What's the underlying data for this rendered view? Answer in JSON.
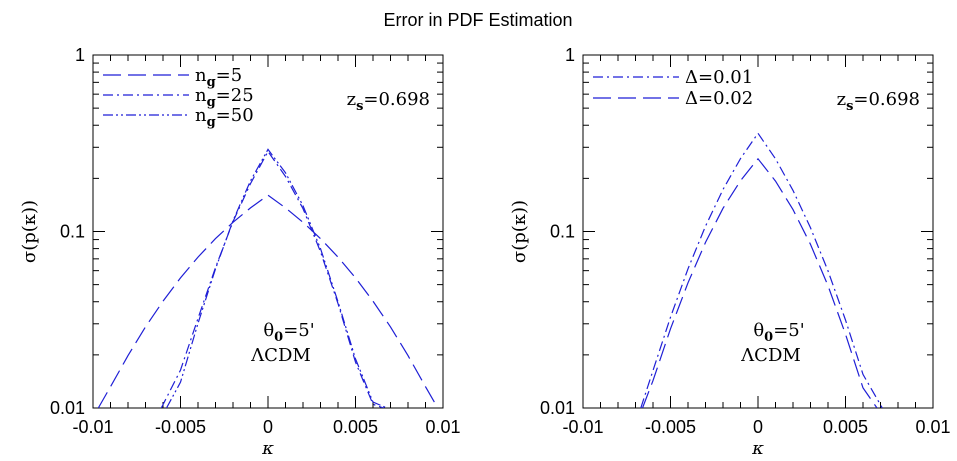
{
  "figure_title": "Error in PDF Estimation",
  "line_color": "#1f1fd6",
  "chart_data": [
    {
      "type": "line",
      "title": "",
      "xlabel": "κ",
      "ylabel": "σ(p(κ))",
      "xlim": [
        -0.01,
        0.01
      ],
      "ylim": [
        0.01,
        1
      ],
      "yscale": "log",
      "xticks": [
        "-0.01",
        "-0.005",
        "0",
        "0.005",
        "0.01"
      ],
      "yticks": [
        "0.01",
        "0.1",
        "1"
      ],
      "legend_position": "top-left",
      "annotation_top": {
        "base": "z",
        "sub": "s",
        "rest": "=0.698"
      },
      "annotation_theta": {
        "base": "θ",
        "sub": "0",
        "rest": "=5'"
      },
      "annotation_model": "ΛCDM",
      "series": [
        {
          "name": "n_g=5",
          "label": {
            "base": "n",
            "sub": "g",
            "rest": "=5"
          },
          "dash": "long-dash",
          "x": [
            -0.0097,
            -0.009,
            -0.008,
            -0.007,
            -0.006,
            -0.005,
            -0.004,
            -0.003,
            -0.002,
            -0.001,
            0,
            0.001,
            0.002,
            0.003,
            0.004,
            0.005,
            0.006,
            0.007,
            0.008,
            0.009,
            0.0097
          ],
          "y": [
            0.01,
            0.0132,
            0.0198,
            0.0288,
            0.0403,
            0.0546,
            0.0716,
            0.0911,
            0.1127,
            0.136,
            0.1605,
            0.136,
            0.1127,
            0.0911,
            0.0716,
            0.0546,
            0.0403,
            0.0288,
            0.0198,
            0.0132,
            0.01
          ]
        },
        {
          "name": "n_g=25",
          "label": {
            "base": "n",
            "sub": "g",
            "rest": "=25"
          },
          "dash": "dash-dot",
          "x": [
            -0.0061,
            -0.005,
            -0.004,
            -0.003,
            -0.002,
            -0.001,
            0,
            0.001,
            0.002,
            0.003,
            0.004,
            0.005,
            0.006,
            0.0066
          ],
          "y": [
            0.01,
            0.0164,
            0.0322,
            0.0624,
            0.1138,
            0.1867,
            0.284,
            0.205,
            0.1349,
            0.0768,
            0.0391,
            0.0182,
            0.0105,
            0.01
          ]
        },
        {
          "name": "n_g=50",
          "label": {
            "base": "n",
            "sub": "g",
            "rest": "=50"
          },
          "dash": "dash-dot-dot",
          "x": [
            -0.0058,
            -0.005,
            -0.004,
            -0.003,
            -0.002,
            -0.001,
            0,
            0.001,
            0.002,
            0.003,
            0.004,
            0.005,
            0.006,
            0.0068
          ],
          "y": [
            0.01,
            0.014,
            0.0302,
            0.0614,
            0.1152,
            0.1938,
            0.292,
            0.215,
            0.14,
            0.08,
            0.04,
            0.019,
            0.0108,
            0.01
          ]
        }
      ]
    },
    {
      "type": "line",
      "title": "",
      "xlabel": "κ",
      "ylabel": "σ(p(κ))",
      "xlim": [
        -0.01,
        0.01
      ],
      "ylim": [
        0.01,
        1
      ],
      "yscale": "log",
      "xticks": [
        "-0.01",
        "-0.005",
        "0",
        "0.005",
        "0.01"
      ],
      "yticks": [
        "0.01",
        "0.1",
        "1"
      ],
      "legend_position": "top-left",
      "annotation_top": {
        "base": "z",
        "sub": "s",
        "rest": "=0.698"
      },
      "annotation_theta": {
        "base": "θ",
        "sub": "0",
        "rest": "=5'"
      },
      "annotation_model": "ΛCDM",
      "series": [
        {
          "name": "Δ=0.01",
          "label": {
            "base": "Δ=0.01",
            "sub": "",
            "rest": ""
          },
          "dash": "dash-dot",
          "x": [
            -0.0067,
            -0.006,
            -0.005,
            -0.004,
            -0.003,
            -0.002,
            -0.001,
            0,
            0.001,
            0.002,
            0.003,
            0.004,
            0.005,
            0.006,
            0.0071
          ],
          "y": [
            0.01,
            0.0163,
            0.0327,
            0.0615,
            0.1072,
            0.173,
            0.259,
            0.36,
            0.258,
            0.171,
            0.105,
            0.0598,
            0.0315,
            0.0155,
            0.01
          ]
        },
        {
          "name": "Δ=0.02",
          "label": {
            "base": "Δ=0.02",
            "sub": "",
            "rest": ""
          },
          "dash": "long-dash",
          "x": [
            -0.0066,
            -0.006,
            -0.005,
            -0.004,
            -0.003,
            -0.002,
            -0.001,
            0,
            0.001,
            0.002,
            0.003,
            0.004,
            0.005,
            0.006,
            0.0068
          ],
          "y": [
            0.01,
            0.0143,
            0.0281,
            0.0512,
            0.0868,
            0.1354,
            0.194,
            0.258,
            0.193,
            0.133,
            0.0845,
            0.0493,
            0.0262,
            0.013,
            0.01
          ]
        }
      ]
    }
  ]
}
